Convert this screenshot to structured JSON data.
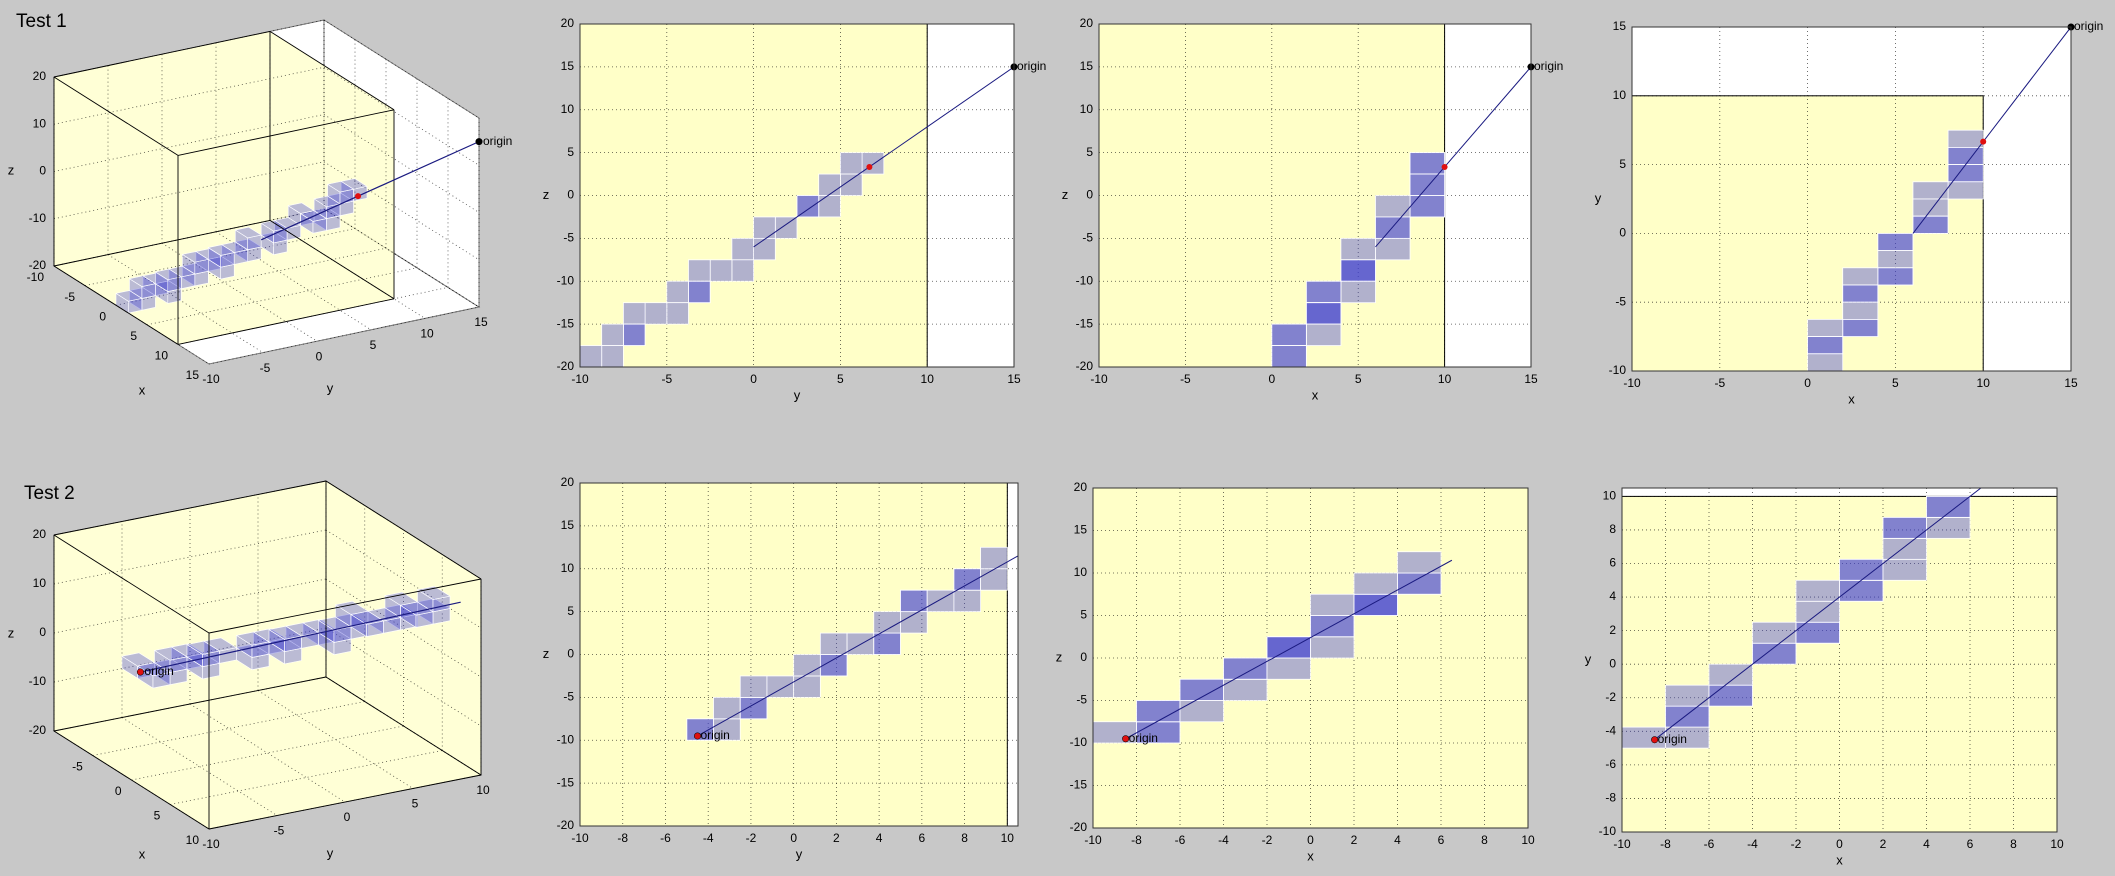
{
  "chart_data": [
    {
      "type": "voxel",
      "title": "Test 1",
      "origin_label": "origin",
      "color": "#3c3cd2",
      "ray_color": "#1a1a80",
      "box": {
        "x": [
          -10,
          10
        ],
        "y": [
          -10,
          10
        ],
        "z": [
          -20,
          20
        ]
      },
      "voxel_size": [
        2,
        1.25,
        2.5
      ],
      "voxels": [
        [
          8,
          6.25,
          2.5
        ],
        [
          8,
          5,
          2.5
        ],
        [
          8,
          5,
          0
        ],
        [
          8,
          3.75,
          0
        ],
        [
          8,
          3.75,
          -2.5
        ],
        [
          8,
          2.5,
          -2.5
        ],
        [
          6,
          2.5,
          -2.5
        ],
        [
          6,
          1.25,
          -5
        ],
        [
          6,
          0,
          -5
        ],
        [
          6,
          0,
          -7.5
        ],
        [
          4,
          -1.25,
          -7.5
        ],
        [
          4,
          -1.25,
          -10
        ],
        [
          4,
          -2.5,
          -10
        ],
        [
          4,
          -3.75,
          -10
        ],
        [
          4,
          -3.75,
          -12.5
        ],
        [
          2,
          -3.75,
          -12.5
        ],
        [
          2,
          -5,
          -12.5
        ],
        [
          2,
          -5,
          -15
        ],
        [
          2,
          -6.25,
          -15
        ],
        [
          2,
          -7.5,
          -15
        ],
        [
          2,
          -7.5,
          -17.5
        ],
        [
          0,
          -7.5,
          -17.5
        ],
        [
          0,
          -8.75,
          -17.5
        ],
        [
          0,
          -8.75,
          -20
        ],
        [
          0,
          -10,
          -20
        ]
      ],
      "ray": {
        "start": [
          15,
          15,
          15
        ],
        "end": [
          6,
          0,
          -6
        ]
      },
      "hit": [
        10,
        6.67,
        3.33
      ],
      "views": [
        {
          "type": "3d",
          "xlabel": "x",
          "ylabel": "y",
          "zlabel": "z",
          "xlim": [
            -10,
            15
          ],
          "ylim": [
            -10,
            15
          ],
          "zlim": [
            -20,
            20
          ],
          "xticks": [
            -10,
            -5,
            0,
            5,
            10,
            15
          ],
          "yticks": [
            -10,
            -5,
            0,
            5,
            10,
            15
          ],
          "zticks": [
            -20,
            -10,
            0,
            10,
            20
          ],
          "grid": true
        },
        {
          "type": "2d",
          "xlabel": "y",
          "ylabel": "z",
          "xlim": [
            -10,
            15
          ],
          "ylim": [
            -20,
            20
          ],
          "xticks": [
            -10,
            -5,
            0,
            5,
            10,
            15
          ],
          "yticks": [
            -20,
            -15,
            -10,
            -5,
            0,
            5,
            10,
            15,
            20
          ],
          "grid": true
        },
        {
          "type": "2d",
          "xlabel": "x",
          "ylabel": "z",
          "xlim": [
            -10,
            15
          ],
          "ylim": [
            -20,
            20
          ],
          "xticks": [
            -10,
            -5,
            0,
            5,
            10,
            15
          ],
          "yticks": [
            -20,
            -15,
            -10,
            -5,
            0,
            5,
            10,
            15,
            20
          ],
          "grid": true
        },
        {
          "type": "2d",
          "xlabel": "x",
          "ylabel": "y",
          "xlim": [
            -10,
            15
          ],
          "ylim": [
            -10,
            15
          ],
          "xticks": [
            -10,
            -5,
            0,
            5,
            10,
            15
          ],
          "yticks": [
            -10,
            -5,
            0,
            5,
            10,
            15
          ],
          "grid": true
        }
      ]
    },
    {
      "type": "voxel",
      "title": "Test 2",
      "origin_label": "origin",
      "color": "#3c3cd2",
      "ray_color": "#1a1a80",
      "box": {
        "x": [
          -10,
          10
        ],
        "y": [
          -10,
          10
        ],
        "z": [
          -20,
          20
        ]
      },
      "voxel_size": [
        2,
        1.25,
        2.5
      ],
      "voxels": [
        [
          -10,
          -5,
          -10
        ],
        [
          -8,
          -5,
          -10
        ],
        [
          -8,
          -3.75,
          -10
        ],
        [
          -8,
          -3.75,
          -7.5
        ],
        [
          -8,
          -2.5,
          -7.5
        ],
        [
          -6,
          -2.5,
          -7.5
        ],
        [
          -6,
          -2.5,
          -5
        ],
        [
          -6,
          -1.25,
          -5
        ],
        [
          -4,
          0,
          -5
        ],
        [
          -4,
          0,
          -2.5
        ],
        [
          -4,
          1.25,
          -2.5
        ],
        [
          -2,
          1.25,
          -2.5
        ],
        [
          -2,
          1.25,
          0
        ],
        [
          -2,
          2.5,
          0
        ],
        [
          -2,
          3.75,
          0
        ],
        [
          0,
          3.75,
          0
        ],
        [
          0,
          3.75,
          2.5
        ],
        [
          0,
          5,
          2.5
        ],
        [
          0,
          5,
          5
        ],
        [
          2,
          5,
          5
        ],
        [
          2,
          6.25,
          5
        ],
        [
          2,
          7.5,
          5
        ],
        [
          2,
          7.5,
          7.5
        ],
        [
          4,
          7.5,
          7.5
        ],
        [
          4,
          8.75,
          7.5
        ],
        [
          4,
          8.75,
          10
        ]
      ],
      "ray": {
        "start": [
          -8.5,
          -4.5,
          -9.5
        ],
        "end": [
          6.5,
          10.5,
          11.5
        ]
      },
      "hit": [
        -8.5,
        -4.5,
        -9.5
      ],
      "views": [
        {
          "type": "3d",
          "xlabel": "x",
          "ylabel": "y",
          "zlabel": "z",
          "xlim": [
            -10,
            10
          ],
          "ylim": [
            -10,
            10
          ],
          "zlim": [
            -20,
            20
          ],
          "xticks": [
            -5,
            0,
            5,
            10
          ],
          "yticks": [
            -10,
            -5,
            0,
            5,
            10
          ],
          "zticks": [
            -20,
            -10,
            0,
            10,
            20
          ],
          "grid": true
        },
        {
          "type": "2d",
          "xlabel": "y",
          "ylabel": "z",
          "xlim": [
            -10,
            10.5
          ],
          "ylim": [
            -20,
            20
          ],
          "xticks": [
            -10,
            -8,
            -6,
            -4,
            -2,
            0,
            2,
            4,
            6,
            8,
            10
          ],
          "yticks": [
            -20,
            -15,
            -10,
            -5,
            0,
            5,
            10,
            15,
            20
          ],
          "grid": true
        },
        {
          "type": "2d",
          "xlabel": "x",
          "ylabel": "z",
          "xlim": [
            -10,
            10
          ],
          "ylim": [
            -20,
            20
          ],
          "xticks": [
            -10,
            -8,
            -6,
            -4,
            -2,
            0,
            2,
            4,
            6,
            8,
            10
          ],
          "yticks": [
            -20,
            -15,
            -10,
            -5,
            0,
            5,
            10,
            15,
            20
          ],
          "grid": true
        },
        {
          "type": "2d",
          "xlabel": "x",
          "ylabel": "y",
          "xlim": [
            -10,
            10
          ],
          "ylim": [
            -10,
            10.5
          ],
          "xticks": [
            -10,
            -8,
            -6,
            -4,
            -2,
            0,
            2,
            4,
            6,
            8,
            10
          ],
          "yticks": [
            -10,
            -8,
            -6,
            -4,
            -2,
            0,
            2,
            4,
            6,
            8,
            10
          ],
          "grid": true
        }
      ]
    }
  ]
}
